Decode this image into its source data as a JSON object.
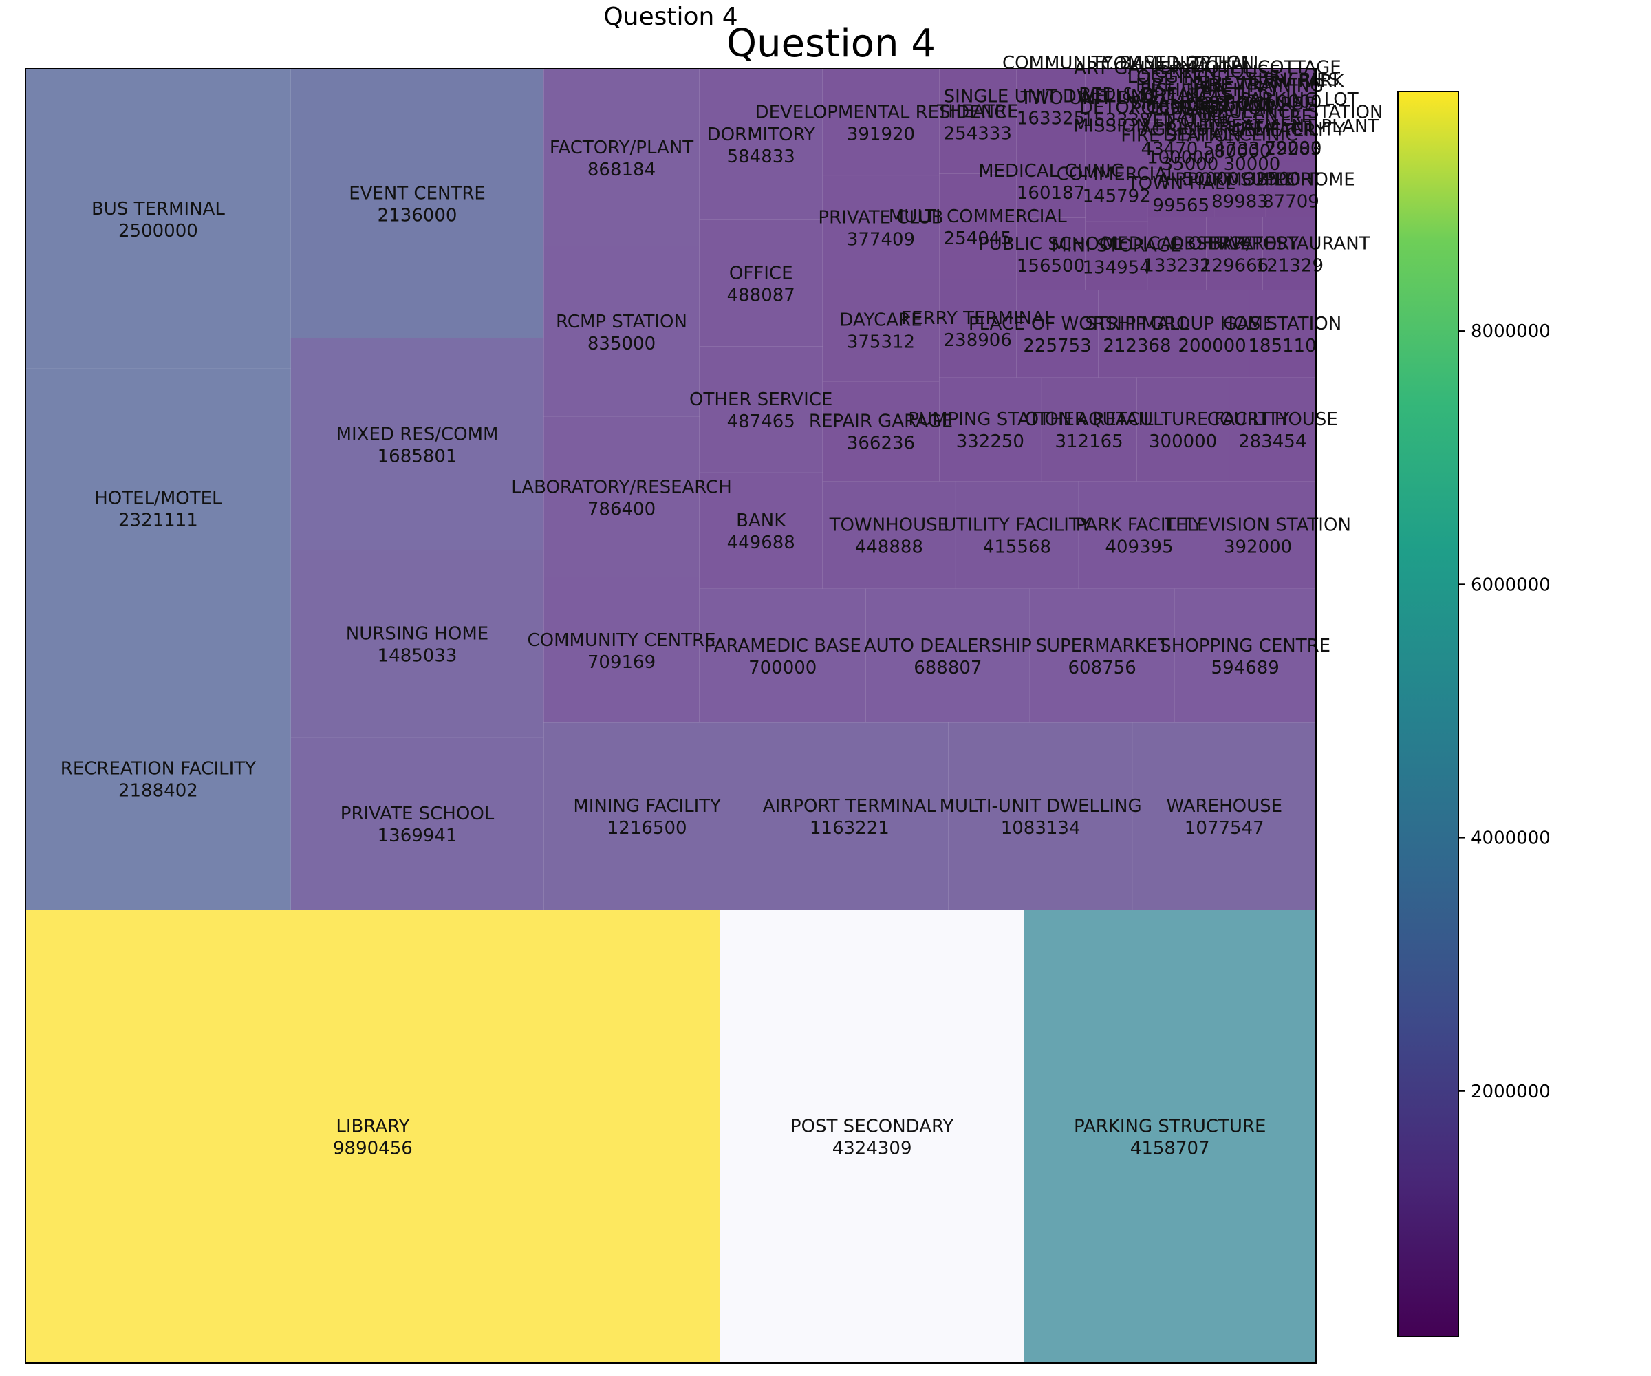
{
  "chart_data": {
    "type": "treemap",
    "title": "Question 4",
    "suptitle": "Question 4",
    "colormap": "viridis",
    "colorbar": {
      "range": [
        60000,
        9890456
      ],
      "ticks": [
        2000000,
        4000000,
        6000000,
        8000000
      ],
      "tick_labels": [
        "2000000",
        "4000000",
        "6000000",
        "8000000"
      ]
    },
    "tiles": [
      {
        "label": "LIBRARY",
        "value": 9890456,
        "color": "#fde85f"
      },
      {
        "label": "POST SECONDARY",
        "value": 4324309,
        "color": "#f9f9fd"
      },
      {
        "label": "PARKING STRUCTURE",
        "value": 4158707,
        "color": "#67a4b0"
      },
      {
        "label": "BUS TERMINAL",
        "value": 2500000,
        "color": "#7683ac"
      },
      {
        "label": "HOTEL/MOTEL",
        "value": 2321111,
        "color": "#7683ac"
      },
      {
        "label": "RECREATION FACILITY",
        "value": 2188402,
        "color": "#7683ac"
      },
      {
        "label": "EVENT CENTRE",
        "value": 2136000,
        "color": "#747ca9"
      },
      {
        "label": "MIXED RES/COMM",
        "value": 1685801,
        "color": "#7b6ea6"
      },
      {
        "label": "NURSING HOME",
        "value": 1485033,
        "color": "#7c6ba4"
      },
      {
        "label": "PRIVATE SCHOOL",
        "value": 1369941,
        "color": "#7c6aa4"
      },
      {
        "label": "MINING FACILITY",
        "value": 1216500,
        "color": "#7c6aa3"
      },
      {
        "label": "AIRPORT TERMINAL",
        "value": 1163221,
        "color": "#7c6aa3"
      },
      {
        "label": "MULTI-UNIT DWELLING",
        "value": 1083134,
        "color": "#7c69a2"
      },
      {
        "label": "WAREHOUSE",
        "value": 1077547,
        "color": "#7c69a2"
      },
      {
        "label": "FACTORY/PLANT",
        "value": 868184,
        "color": "#7d61a0"
      },
      {
        "label": "RCMP STATION",
        "value": 835000,
        "color": "#7d60a0"
      },
      {
        "label": "LABORATORY/RESEARCH",
        "value": 786400,
        "color": "#7d5f9f"
      },
      {
        "label": "COMMUNITY CENTRE",
        "value": 709169,
        "color": "#7d5e9f"
      },
      {
        "label": "PARAMEDIC BASE",
        "value": 700000,
        "color": "#7d5e9f"
      },
      {
        "label": "AUTO DEALERSHIP",
        "value": 688807,
        "color": "#7d5e9f"
      },
      {
        "label": "SUPERMARKET",
        "value": 608756,
        "color": "#7d5c9e"
      },
      {
        "label": "SHOPPING CENTRE",
        "value": 594689,
        "color": "#7d5c9e"
      },
      {
        "label": "DORMITORY",
        "value": 584833,
        "color": "#7c5b9d"
      },
      {
        "label": "OFFICE",
        "value": 488087,
        "color": "#7c5a9c"
      },
      {
        "label": "OTHER SERVICE",
        "value": 487465,
        "color": "#7c5a9c"
      },
      {
        "label": "BANK",
        "value": 449688,
        "color": "#7c599c"
      },
      {
        "label": "TOWNHOUSE",
        "value": 448888,
        "color": "#7b589b"
      },
      {
        "label": "UTILITY FACILITY",
        "value": 415568,
        "color": "#7b589b"
      },
      {
        "label": "PARK FACILITY",
        "value": 409395,
        "color": "#7b579b"
      },
      {
        "label": "TELEVISION STATION",
        "value": 392000,
        "color": "#7b569a"
      },
      {
        "label": "DEVELOPMENTAL RESIDENC",
        "value": 391920,
        "color": "#7b569a"
      },
      {
        "label": "PRIVATE CLUB",
        "value": 377409,
        "color": "#7b569a"
      },
      {
        "label": "DAYCARE",
        "value": 375312,
        "color": "#7b5699"
      },
      {
        "label": "REPAIR GARAGE",
        "value": 366236,
        "color": "#7b5599"
      },
      {
        "label": "PUMPING STATION",
        "value": 332250,
        "color": "#7a5499"
      },
      {
        "label": "OTHER RETAIL",
        "value": 312165,
        "color": "#7a5498"
      },
      {
        "label": "AQUACULTURE FACILITY",
        "value": 300000,
        "color": "#7a5498"
      },
      {
        "label": "COURT HOUSE",
        "value": 283454,
        "color": "#7a5398"
      },
      {
        "label": "THEATRE",
        "value": 254333,
        "color": "#7a5297"
      },
      {
        "label": "MULTI COMMERCIAL",
        "value": 254045,
        "color": "#7a5297"
      },
      {
        "label": "FERRY TERMINAL",
        "value": 238906,
        "color": "#795297"
      },
      {
        "label": "PLACE OF WORSHIP",
        "value": 225753,
        "color": "#795197"
      },
      {
        "label": "STRIP MALL",
        "value": 212368,
        "color": "#795196"
      },
      {
        "label": "GROUP HOME",
        "value": 200000,
        "color": "#795196"
      },
      {
        "label": "GAS STATION",
        "value": 185110,
        "color": "#795096"
      },
      {
        "label": "SINGLE UNIT DWELLING",
        "value": 163325,
        "color": "#784f95"
      },
      {
        "label": "MEDICAL CLINIC",
        "value": 160187,
        "color": "#784f95"
      },
      {
        "label": "PUBLIC SCHOOL",
        "value": 156500,
        "color": "#784f95"
      },
      {
        "label": "TWO UNIT DWELLING",
        "value": 153333,
        "color": "#784e95"
      },
      {
        "label": "COMMERCIAL",
        "value": 145792,
        "color": "#784e95"
      },
      {
        "label": "MINI STORAGE",
        "value": 134954,
        "color": "#784e94"
      },
      {
        "label": "MEDICAL OFFICE",
        "value": 133232,
        "color": "#784e94"
      },
      {
        "label": "OBSERVATORY",
        "value": 129666,
        "color": "#784e94"
      },
      {
        "label": "BAR/RESTAURANT",
        "value": 121329,
        "color": "#774d94"
      },
      {
        "label": "FIRE HALL",
        "value": 109948,
        "color": "#774d94"
      },
      {
        "label": "FIRE STATION",
        "value": 100000,
        "color": "#774c93"
      },
      {
        "label": "TOWN HALL",
        "value": 99565,
        "color": "#774c93"
      },
      {
        "label": "AIRPORT SUPPORT",
        "value": 89983,
        "color": "#774c93"
      },
      {
        "label": "MOBILE HOME",
        "value": 87709,
        "color": "#774c93"
      },
      {
        "label": "BREWERY",
        "value": 85000,
        "color": "#774c93"
      },
      {
        "label": "AGRICULTURE FACILITY",
        "value": 80000,
        "color": "#774b93"
      },
      {
        "label": "TREATMENT PLANT",
        "value": 72000,
        "color": "#774b93"
      },
      {
        "label": "FISHERIES",
        "value": 60000,
        "color": "#764b92"
      }
    ],
    "crowded_labels": [
      {
        "label": "COMMUNITY BASED OPTION"
      },
      {
        "label": "SMALL OPTION"
      },
      {
        "label": "MOTEL COTTAGE"
      },
      {
        "label": "DETOX CENTRE"
      },
      {
        "label": "GREENHOUSE"
      },
      {
        "label": "AMBULANCE STATION"
      },
      {
        "label": "LOGGING"
      },
      {
        "label": "NATURE CENTRE"
      },
      {
        "label": "RV PARK"
      },
      {
        "label": "VET CLINIC"
      },
      {
        "label": "FIRE TRAINING"
      },
      {
        "label": "MISSION HOME"
      },
      {
        "label": "FISH HATCHERY"
      },
      {
        "label": "CEMETERY"
      },
      {
        "label": "BED & BREAKFAST"
      },
      {
        "label": "DENTAL CLINIC"
      },
      {
        "label": "PARKING LOT"
      },
      {
        "label": "COMMUNITY HALL"
      },
      {
        "label": "GOLF COURSE"
      },
      {
        "label": "ART GALLERY"
      },
      {
        "label": "POLICE STATION"
      }
    ],
    "crowded_values": [
      "43470",
      "35000",
      "50000",
      "54733",
      "30000",
      "32500",
      "29283"
    ]
  }
}
